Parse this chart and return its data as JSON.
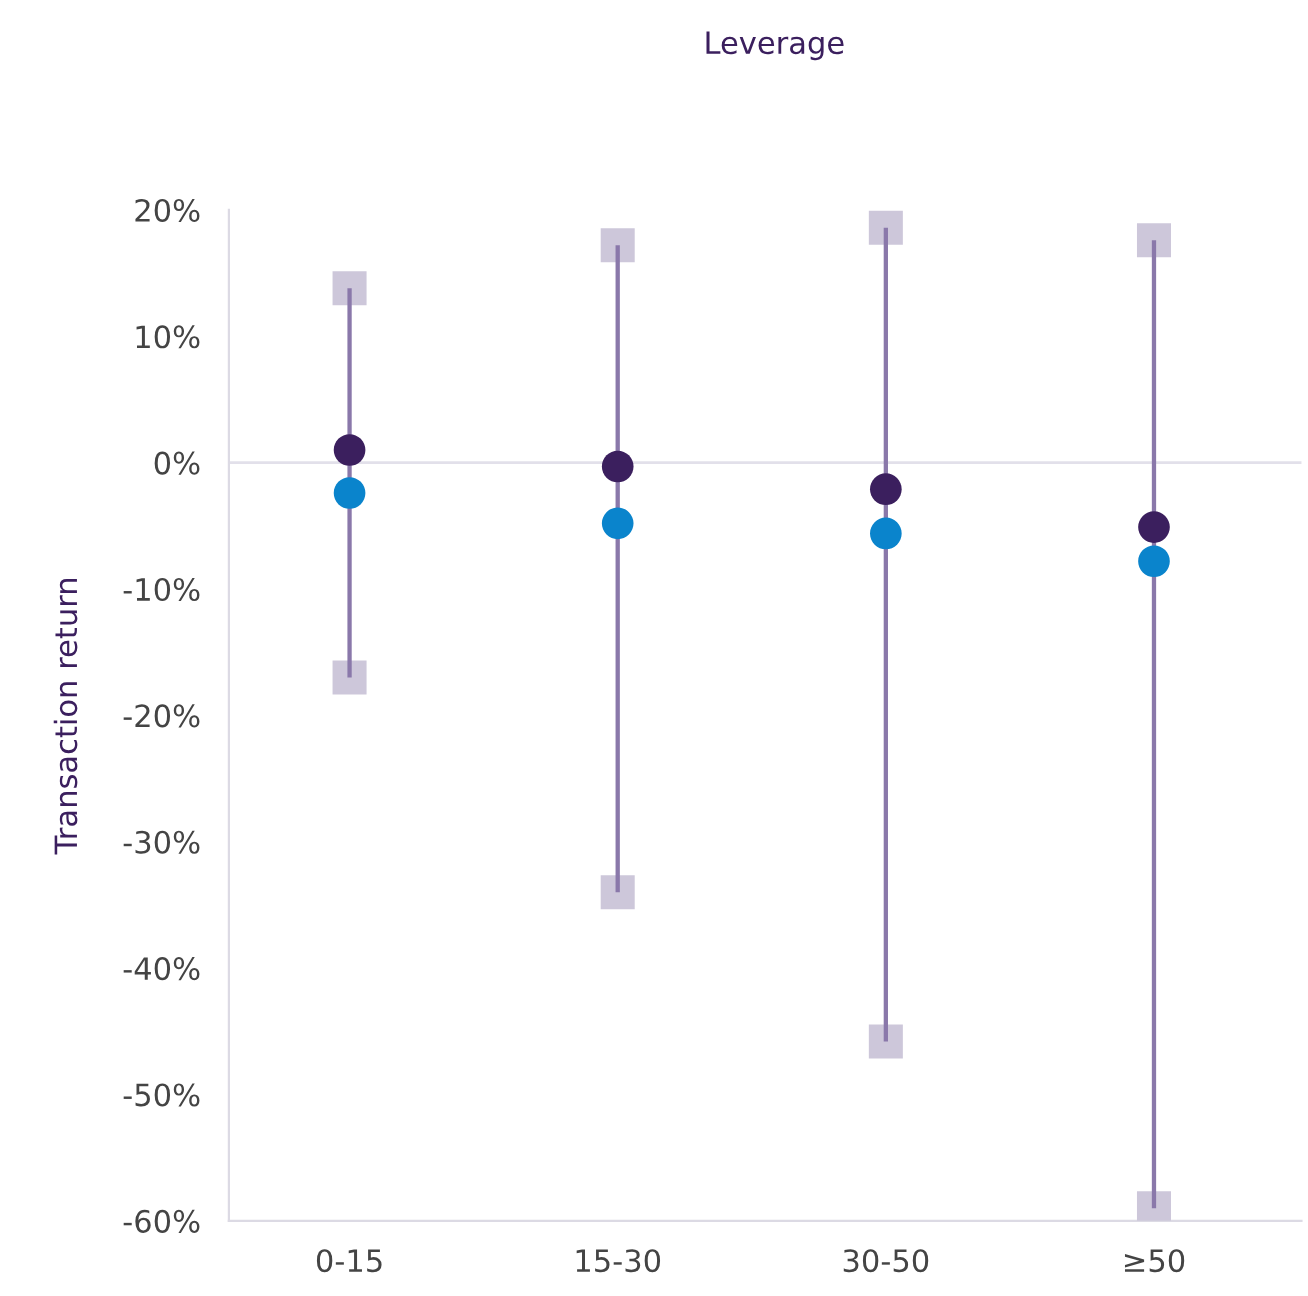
{
  "chart_data": {
    "type": "scatter",
    "title": "Leverage",
    "ylabel": "Transaction return",
    "categories": [
      "0-15",
      "15-30",
      "30-50",
      "≥50"
    ],
    "series": [
      {
        "color": "#cdc7da",
        "marker": "square",
        "values": [
          13.8,
          17.2,
          18.6,
          17.6
        ]
      },
      {
        "color": "#cdc7da",
        "marker": "square",
        "values": [
          -17,
          -34,
          -45.8,
          -59
        ]
      },
      {
        "type": "bar",
        "color": "#8a78aa",
        "base": [
          -17,
          -34,
          -45.8,
          -59
        ],
        "values": [
          30.8,
          51.2,
          64.4,
          76.6
        ]
      },
      {
        "color": "#3b1f5e",
        "marker": "circle",
        "values": [
          1.0,
          -0.3,
          -2.1,
          -5.1
        ]
      },
      {
        "color": "#0a84cc",
        "marker": "circle",
        "values": [
          -2.4,
          -4.8,
          -5.6,
          -7.8
        ]
      }
    ],
    "ylim": [
      -60,
      20
    ],
    "yticks": [
      {
        "value": 20,
        "label": "20%"
      },
      {
        "value": 10,
        "label": "10%"
      },
      {
        "value": 0,
        "label": "0%"
      },
      {
        "value": -10,
        "label": "-10%"
      },
      {
        "value": -20,
        "label": "-20%"
      },
      {
        "value": -30,
        "label": "-30%"
      },
      {
        "value": -40,
        "label": "-40%"
      },
      {
        "value": -50,
        "label": "-50%"
      },
      {
        "value": -60,
        "label": "-60%"
      }
    ],
    "ref_lines": [
      {
        "axis": "y",
        "value": 0,
        "color": "#e2e0ea"
      }
    ],
    "grid": false,
    "legend": false
  }
}
